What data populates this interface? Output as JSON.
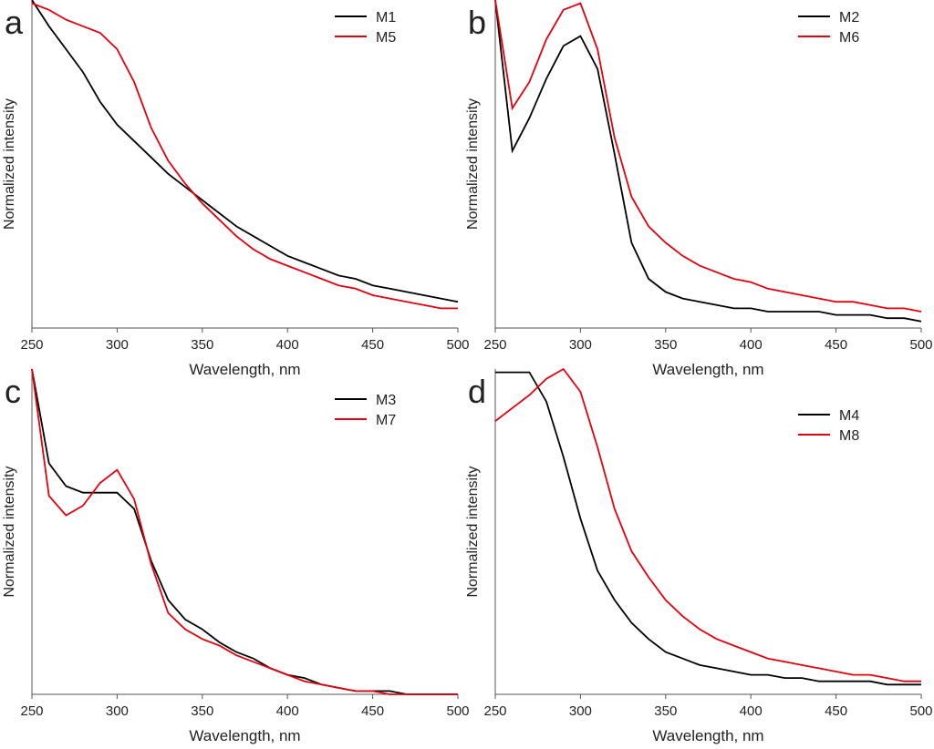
{
  "chart_data": [
    {
      "type": "line",
      "label": "a",
      "xlabel": "Wavelength, nm",
      "ylabel": "Normalized intensity",
      "x": [
        250,
        260,
        270,
        280,
        290,
        300,
        310,
        320,
        330,
        340,
        350,
        360,
        370,
        380,
        390,
        400,
        410,
        420,
        430,
        440,
        450,
        460,
        470,
        480,
        490,
        500
      ],
      "xlim": [
        250,
        500
      ],
      "xticks": [
        250,
        300,
        350,
        400,
        450,
        500
      ],
      "ylim": [
        0,
        1
      ],
      "series": [
        {
          "name": "M1",
          "color": "#000000",
          "values": [
            1.0,
            0.92,
            0.85,
            0.78,
            0.69,
            0.62,
            0.57,
            0.52,
            0.47,
            0.43,
            0.39,
            0.35,
            0.31,
            0.28,
            0.25,
            0.22,
            0.2,
            0.18,
            0.16,
            0.15,
            0.13,
            0.12,
            0.11,
            0.1,
            0.09,
            0.08
          ]
        },
        {
          "name": "M5",
          "color": "#e3000f",
          "values": [
            0.99,
            0.97,
            0.94,
            0.92,
            0.9,
            0.85,
            0.75,
            0.61,
            0.51,
            0.44,
            0.38,
            0.33,
            0.28,
            0.24,
            0.21,
            0.19,
            0.17,
            0.15,
            0.13,
            0.12,
            0.1,
            0.09,
            0.08,
            0.07,
            0.06,
            0.06
          ]
        }
      ]
    },
    {
      "type": "line",
      "label": "b",
      "xlabel": "Wavelength, nm",
      "ylabel": "Normalized intensity",
      "x": [
        250,
        260,
        270,
        280,
        290,
        300,
        310,
        320,
        330,
        340,
        350,
        360,
        370,
        380,
        390,
        400,
        410,
        420,
        430,
        440,
        450,
        460,
        470,
        480,
        490,
        500
      ],
      "xlim": [
        250,
        500
      ],
      "xticks": [
        250,
        300,
        350,
        400,
        450,
        500
      ],
      "ylim": [
        0,
        1
      ],
      "series": [
        {
          "name": "M2",
          "color": "#000000",
          "values": [
            1.0,
            0.54,
            0.64,
            0.76,
            0.86,
            0.89,
            0.79,
            0.53,
            0.26,
            0.15,
            0.11,
            0.09,
            0.08,
            0.07,
            0.06,
            0.06,
            0.05,
            0.05,
            0.05,
            0.05,
            0.04,
            0.04,
            0.04,
            0.03,
            0.03,
            0.02
          ]
        },
        {
          "name": "M6",
          "color": "#e3000f",
          "values": [
            1.0,
            0.67,
            0.75,
            0.88,
            0.97,
            0.99,
            0.85,
            0.58,
            0.4,
            0.31,
            0.26,
            0.22,
            0.19,
            0.17,
            0.15,
            0.14,
            0.12,
            0.11,
            0.1,
            0.09,
            0.08,
            0.08,
            0.07,
            0.06,
            0.06,
            0.05
          ]
        }
      ]
    },
    {
      "type": "line",
      "label": "c",
      "xlabel": "Wavelength, nm",
      "ylabel": "Normalized intensity",
      "x": [
        250,
        260,
        270,
        280,
        290,
        300,
        310,
        320,
        330,
        340,
        350,
        360,
        370,
        380,
        390,
        400,
        410,
        420,
        430,
        440,
        450,
        460,
        470,
        480,
        490,
        500
      ],
      "xlim": [
        250,
        500
      ],
      "xticks": [
        250,
        300,
        350,
        400,
        450,
        500
      ],
      "ylim": [
        0,
        1
      ],
      "series": [
        {
          "name": "M3",
          "color": "#000000",
          "values": [
            1.0,
            0.71,
            0.64,
            0.62,
            0.62,
            0.62,
            0.57,
            0.41,
            0.29,
            0.23,
            0.2,
            0.16,
            0.13,
            0.11,
            0.08,
            0.06,
            0.05,
            0.03,
            0.02,
            0.01,
            0.01,
            0.01,
            0.0,
            0.0,
            0.0,
            0.0
          ]
        },
        {
          "name": "M7",
          "color": "#e3000f",
          "values": [
            1.0,
            0.61,
            0.55,
            0.58,
            0.65,
            0.69,
            0.6,
            0.4,
            0.25,
            0.2,
            0.17,
            0.15,
            0.12,
            0.1,
            0.08,
            0.06,
            0.04,
            0.03,
            0.02,
            0.01,
            0.01,
            0.0,
            0.0,
            0.0,
            0.0,
            0.0
          ]
        }
      ]
    },
    {
      "type": "line",
      "label": "d",
      "xlabel": "Wavelength, nm",
      "ylabel": "Normalized intensity",
      "x": [
        250,
        260,
        270,
        280,
        290,
        300,
        310,
        320,
        330,
        340,
        350,
        360,
        370,
        380,
        390,
        400,
        410,
        420,
        430,
        440,
        450,
        460,
        470,
        480,
        490,
        500
      ],
      "xlim": [
        250,
        500
      ],
      "xticks": [
        250,
        300,
        350,
        400,
        450,
        500
      ],
      "ylim": [
        0,
        1
      ],
      "series": [
        {
          "name": "M4",
          "color": "#000000",
          "values": [
            0.99,
            0.99,
            0.99,
            0.9,
            0.73,
            0.54,
            0.38,
            0.29,
            0.22,
            0.17,
            0.13,
            0.11,
            0.09,
            0.08,
            0.07,
            0.06,
            0.06,
            0.05,
            0.05,
            0.04,
            0.04,
            0.04,
            0.04,
            0.03,
            0.03,
            0.03
          ]
        },
        {
          "name": "M8",
          "color": "#e3000f",
          "values": [
            0.84,
            0.88,
            0.92,
            0.97,
            1.0,
            0.93,
            0.76,
            0.57,
            0.44,
            0.36,
            0.29,
            0.24,
            0.2,
            0.17,
            0.15,
            0.13,
            0.11,
            0.1,
            0.09,
            0.08,
            0.07,
            0.06,
            0.06,
            0.05,
            0.04,
            0.04
          ]
        }
      ]
    }
  ]
}
